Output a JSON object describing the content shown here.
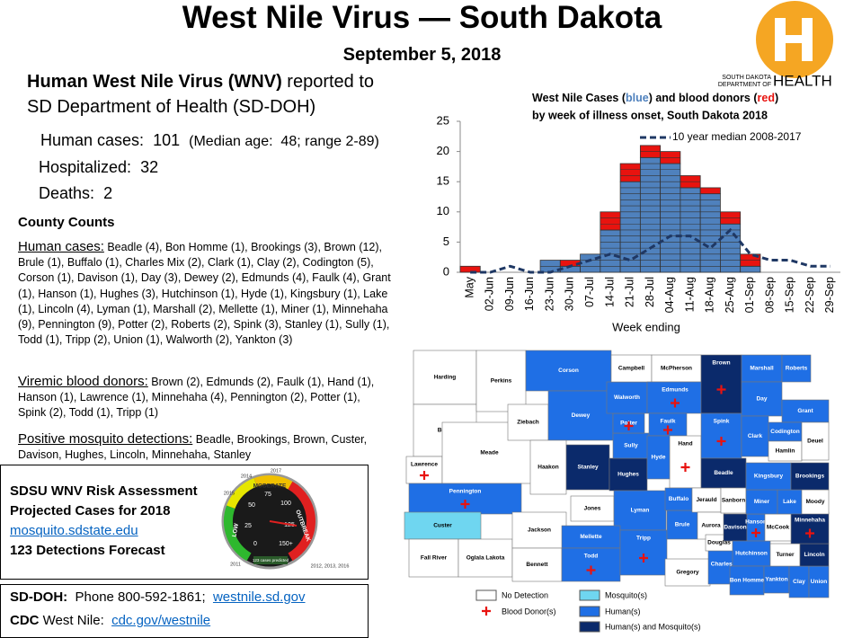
{
  "header": {
    "title": "West Nile Virus — South Dakota",
    "date": "September 5, 2018"
  },
  "logo": {
    "line1": "SOUTH DAKOTA",
    "line2": "DEPARTMENT OF",
    "line3": "HEALTH"
  },
  "summary": {
    "heading_bold": "Human West Nile Virus (WNV)",
    "heading_rest": " reported to",
    "heading_line2": "SD Department of Health (SD-DOH)",
    "cases_label": "Human cases:",
    "cases": 101,
    "cases_note": "(Median age:  48; range 2-89)",
    "hosp_label": "Hospitalized:",
    "hosp": 32,
    "deaths_label": "Deaths:",
    "deaths": 2
  },
  "county_counts": {
    "heading": "County Counts",
    "human_label": "Human cases:",
    "human_text": " Beadle (4), Bon Homme (1), Brookings (3), Brown (12), Brule (1), Buffalo (1), Charles Mix (2), Clark (1), Clay (2), Codington (5), Corson (1), Davison (1), Day (3), Dewey (2), Edmunds (4), Faulk (4), Grant (1), Hanson (1), Hughes (3), Hutchinson (1), Hyde (1), Kingsbury (1), Lake (1), Lincoln (4), Lyman (1), Marshall (2), Mellette (1), Miner (1), Minnehaha (9), Pennington (9), Potter (2), Roberts (2), Spink (3), Stanley (1), Sully (1), Todd (1), Tripp (2), Union (1), Walworth (2), Yankton (3)",
    "donor_label": "Viremic blood donors:",
    "donor_text": " Brown (2), Edmunds (2), Faulk (1), Hand (1), Hanson (1), Lawrence (1), Minnehaha (4), Pennington (2), Potter (1), Spink (2), Todd (1), Tripp (1)",
    "mosq_label": "Positive mosquito detections:",
    "mosq_text": " Beadle, Brookings, Brown, Custer, Davison, Hughes, Lincoln, Minnehaha, Stanley"
  },
  "risk": {
    "line1": "SDSU WNV Risk Assessment",
    "line2": "Projected Cases for 2018",
    "link": "mosquito.sdstate.edu",
    "line4": "123 Detections Forecast",
    "gauge": {
      "moderate": "MODERATE",
      "outbreak": "OUTBREAK",
      "low": "LOW",
      "n0": "0",
      "n25": "25",
      "n50": "50",
      "n75": "75",
      "n100": "100",
      "n125": "125",
      "n150": "150+",
      "y2014": "2014",
      "y2017": "2017",
      "y2015": "2015",
      "y2011": "2011",
      "y2012": "2012, 2013, 2016",
      "readout": "123 cases predicted"
    }
  },
  "contact": {
    "sd_label": "SD-DOH:",
    "sd_phone": "  Phone 800-592-1861;  ",
    "sd_link": "westnile.sd.gov",
    "cdc_label": "CDC",
    "cdc_rest": " West Nile:  ",
    "cdc_link": "cdc.gov/westnile"
  },
  "chart_data": {
    "type": "bar",
    "stacked": true,
    "title": {
      "part1": "West Nile Cases (",
      "blue": "blue",
      "part2": ") and blood donors (",
      "red": "red",
      "part3": ")",
      "line2": "by week of illness onset, South Dakota 2018"
    },
    "x_label": "Week ending",
    "categories": [
      "May",
      "02-Jun",
      "09-Jun",
      "16-Jun",
      "23-Jun",
      "30-Jun",
      "07-Jul",
      "14-Jul",
      "21-Jul",
      "28-Jul",
      "04-Aug",
      "11-Aug",
      "18-Aug",
      "25-Aug",
      "01-Sep",
      "08-Sep",
      "15-Sep",
      "22-Sep",
      "29-Sep"
    ],
    "series": [
      {
        "color": "#4f81bd",
        "values": [
          0,
          0,
          0,
          0,
          2,
          1,
          3,
          7,
          15,
          19,
          18,
          14,
          13,
          8,
          1,
          0,
          0,
          0,
          0
        ]
      },
      {
        "color": "#e8130f",
        "values": [
          1,
          0,
          0,
          0,
          0,
          1,
          0,
          3,
          3,
          2,
          2,
          2,
          1,
          2,
          2,
          0,
          0,
          0,
          0
        ]
      },
      {
        "name": "10 year median 2008-2017",
        "type": "line",
        "color": "#1f3864",
        "values": [
          0,
          0,
          1,
          0,
          0,
          1,
          2,
          3,
          2,
          4,
          6,
          6,
          4,
          7,
          3,
          2,
          2,
          1,
          1
        ]
      }
    ],
    "ylim": [
      0,
      25
    ],
    "yticks": [
      0,
      5,
      10,
      15,
      20,
      25
    ]
  },
  "map": {
    "legend": [
      {
        "label": "No Detection",
        "color": "#ffffff"
      },
      {
        "label": "Mosquito(s)",
        "color": "#6fd6f0"
      },
      {
        "label": "Human(s)",
        "color": "#1f6fe5"
      },
      {
        "label": "Human(s) and Mosquito(s)",
        "color": "#0b2a6b"
      }
    ],
    "donor_label": "Blood Donor(s)",
    "donor_color": "#e8130f",
    "counties": [
      {
        "name": "Harding",
        "color": "#ffffff"
      },
      {
        "name": "Butte",
        "color": "#ffffff"
      },
      {
        "name": "Lawrence",
        "color": "#ffffff",
        "donor": true
      },
      {
        "name": "Meade",
        "color": "#ffffff"
      },
      {
        "name": "Perkins",
        "color": "#ffffff"
      },
      {
        "name": "Corson",
        "color": "#1f6fe5"
      },
      {
        "name": "Ziebach",
        "color": "#ffffff"
      },
      {
        "name": "Dewey",
        "color": "#1f6fe5"
      },
      {
        "name": "Pennington",
        "color": "#1f6fe5",
        "donor": true
      },
      {
        "name": "Custer",
        "color": "#6fd6f0"
      },
      {
        "name": "Fall River",
        "color": "#ffffff"
      },
      {
        "name": "Oglala Lakota",
        "color": "#ffffff"
      },
      {
        "name": "Jackson",
        "color": "#ffffff"
      },
      {
        "name": "Bennett",
        "color": "#ffffff"
      },
      {
        "name": "Haakon",
        "color": "#ffffff"
      },
      {
        "name": "Jones",
        "color": "#ffffff"
      },
      {
        "name": "Stanley",
        "color": "#0b2a6b"
      },
      {
        "name": "Hughes",
        "color": "#0b2a6b"
      },
      {
        "name": "Sully",
        "color": "#1f6fe5"
      },
      {
        "name": "Potter",
        "color": "#1f6fe5",
        "donor": true
      },
      {
        "name": "Walworth",
        "color": "#1f6fe5"
      },
      {
        "name": "Campbell",
        "color": "#ffffff"
      },
      {
        "name": "McPherson",
        "color": "#ffffff"
      },
      {
        "name": "Edmunds",
        "color": "#1f6fe5",
        "donor": true
      },
      {
        "name": "Faulk",
        "color": "#1f6fe5",
        "donor": true
      },
      {
        "name": "Hand",
        "color": "#ffffff",
        "donor": true
      },
      {
        "name": "Hyde",
        "color": "#1f6fe5"
      },
      {
        "name": "Lyman",
        "color": "#1f6fe5"
      },
      {
        "name": "Mellette",
        "color": "#1f6fe5"
      },
      {
        "name": "Todd",
        "color": "#1f6fe5",
        "donor": true
      },
      {
        "name": "Tripp",
        "color": "#1f6fe5",
        "donor": true
      },
      {
        "name": "Gregory",
        "color": "#ffffff"
      },
      {
        "name": "Brule",
        "color": "#1f6fe5"
      },
      {
        "name": "Buffalo",
        "color": "#1f6fe5"
      },
      {
        "name": "Jerauld",
        "color": "#ffffff"
      },
      {
        "name": "Aurora",
        "color": "#ffffff"
      },
      {
        "name": "Charles Mix",
        "color": "#1f6fe5"
      },
      {
        "name": "Douglas",
        "color": "#ffffff"
      },
      {
        "name": "Brown",
        "color": "#0b2a6b",
        "donor": true
      },
      {
        "name": "Spink",
        "color": "#1f6fe5",
        "donor": true
      },
      {
        "name": "Beadle",
        "color": "#0b2a6b"
      },
      {
        "name": "Sanborn",
        "color": "#ffffff"
      },
      {
        "name": "Davison",
        "color": "#0b2a6b"
      },
      {
        "name": "Hanson",
        "color": "#1f6fe5",
        "donor": true
      },
      {
        "name": "Hutchinson",
        "color": "#1f6fe5"
      },
      {
        "name": "Bon Homme",
        "color": "#1f6fe5"
      },
      {
        "name": "Yankton",
        "color": "#1f6fe5"
      },
      {
        "name": "Clay",
        "color": "#1f6fe5"
      },
      {
        "name": "Union",
        "color": "#1f6fe5"
      },
      {
        "name": "Turner",
        "color": "#ffffff"
      },
      {
        "name": "Lincoln",
        "color": "#0b2a6b"
      },
      {
        "name": "Minnehaha",
        "color": "#0b2a6b",
        "donor": true
      },
      {
        "name": "McCook",
        "color": "#ffffff"
      },
      {
        "name": "Miner",
        "color": "#1f6fe5"
      },
      {
        "name": "Lake",
        "color": "#1f6fe5"
      },
      {
        "name": "Moody",
        "color": "#ffffff"
      },
      {
        "name": "Kingsbury",
        "color": "#1f6fe5"
      },
      {
        "name": "Brookings",
        "color": "#0b2a6b"
      },
      {
        "name": "Marshall",
        "color": "#1f6fe5"
      },
      {
        "name": "Roberts",
        "color": "#1f6fe5"
      },
      {
        "name": "Day",
        "color": "#1f6fe5"
      },
      {
        "name": "Grant",
        "color": "#1f6fe5"
      },
      {
        "name": "Codington",
        "color": "#1f6fe5"
      },
      {
        "name": "Clark",
        "color": "#1f6fe5"
      },
      {
        "name": "Hamlin",
        "color": "#ffffff"
      },
      {
        "name": "Deuel",
        "color": "#ffffff"
      }
    ]
  }
}
